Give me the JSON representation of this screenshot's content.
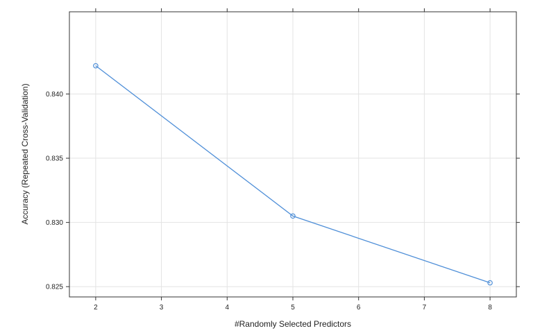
{
  "chart_data": {
    "type": "line",
    "xlabel": "#Randomly Selected Predictors",
    "ylabel": "Accuracy (Repeated Cross-Validation)",
    "x_ticks": [
      2,
      3,
      4,
      5,
      6,
      7,
      8
    ],
    "y_ticks": [
      0.825,
      0.83,
      0.835,
      0.84
    ],
    "y_tick_labels": [
      "0.825",
      "0.830",
      "0.835",
      "0.840"
    ],
    "xlim": [
      1.6,
      8.4
    ],
    "ylim": [
      0.8242,
      0.8464
    ],
    "grid": true,
    "series": [
      {
        "x": [
          2,
          5,
          8
        ],
        "y": [
          0.8422,
          0.8305,
          0.8253
        ],
        "color": "#4f8fd8"
      }
    ]
  }
}
